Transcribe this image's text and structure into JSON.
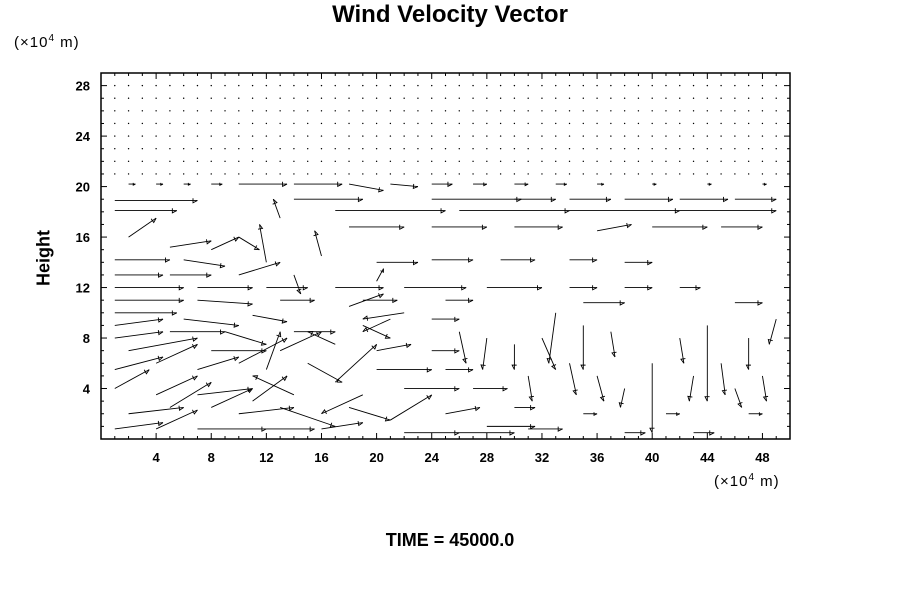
{
  "chart_data": {
    "type": "quiver",
    "title": "Wind Velocity Vector",
    "ylabel": "Height",
    "y_units": {
      "base": "(×10",
      "exp": "4",
      "tail": " m)"
    },
    "x_units": {
      "base": "(×10",
      "exp": "4",
      "tail": " m)"
    },
    "footer": "TIME = 45000.0",
    "xlim": [
      0,
      50
    ],
    "ylim": [
      0,
      29
    ],
    "x_ticks": [
      4,
      8,
      12,
      16,
      20,
      24,
      28,
      32,
      36,
      40,
      44,
      48
    ],
    "y_ticks": [
      4,
      8,
      12,
      16,
      20,
      24,
      28
    ],
    "grid": false,
    "vectors": [
      {
        "x": 2,
        "y": 20.2,
        "u": 0.5,
        "v": 0
      },
      {
        "x": 4,
        "y": 20.2,
        "u": 0.5,
        "v": 0
      },
      {
        "x": 6,
        "y": 20.2,
        "u": 0.5,
        "v": 0
      },
      {
        "x": 8,
        "y": 20.2,
        "u": 0.8,
        "v": 0
      },
      {
        "x": 10,
        "y": 20.2,
        "u": 3.5,
        "v": 0
      },
      {
        "x": 14,
        "y": 20.2,
        "u": 3.5,
        "v": 0
      },
      {
        "x": 18,
        "y": 20.2,
        "u": 2.5,
        "v": -0.5
      },
      {
        "x": 21,
        "y": 20.2,
        "u": 2.0,
        "v": -0.2
      },
      {
        "x": 24,
        "y": 20.2,
        "u": 1.5,
        "v": 0
      },
      {
        "x": 27,
        "y": 20.2,
        "u": 1.0,
        "v": 0
      },
      {
        "x": 30,
        "y": 20.2,
        "u": 1.0,
        "v": 0
      },
      {
        "x": 33,
        "y": 20.2,
        "u": 0.8,
        "v": 0
      },
      {
        "x": 36,
        "y": 20.2,
        "u": 0.5,
        "v": 0
      },
      {
        "x": 40,
        "y": 20.2,
        "u": 0.3,
        "v": 0
      },
      {
        "x": 44,
        "y": 20.2,
        "u": 0.3,
        "v": 0
      },
      {
        "x": 48,
        "y": 20.2,
        "u": 0.3,
        "v": 0
      },
      {
        "x": 1,
        "y": 18.9,
        "u": 6.0,
        "v": 0
      },
      {
        "x": 14,
        "y": 19.0,
        "u": 5.0,
        "v": 0
      },
      {
        "x": 24,
        "y": 19.0,
        "u": 6.5,
        "v": 0
      },
      {
        "x": 30,
        "y": 19.0,
        "u": 3.0,
        "v": 0
      },
      {
        "x": 34,
        "y": 19.0,
        "u": 3.0,
        "v": 0
      },
      {
        "x": 38,
        "y": 19.0,
        "u": 3.5,
        "v": 0
      },
      {
        "x": 42,
        "y": 19.0,
        "u": 3.5,
        "v": 0
      },
      {
        "x": 46,
        "y": 19.0,
        "u": 3.0,
        "v": 0
      },
      {
        "x": 1,
        "y": 18.1,
        "u": 4.5,
        "v": 0
      },
      {
        "x": 17,
        "y": 18.1,
        "u": 8.0,
        "v": 0
      },
      {
        "x": 26,
        "y": 18.1,
        "u": 8.0,
        "v": 0
      },
      {
        "x": 34,
        "y": 18.1,
        "u": 8.0,
        "v": 0
      },
      {
        "x": 42,
        "y": 18.1,
        "u": 7.0,
        "v": 0
      },
      {
        "x": 18,
        "y": 16.8,
        "u": 4.0,
        "v": 0
      },
      {
        "x": 24,
        "y": 16.8,
        "u": 4.0,
        "v": 0
      },
      {
        "x": 30,
        "y": 16.8,
        "u": 3.5,
        "v": 0
      },
      {
        "x": 36,
        "y": 16.5,
        "u": 2.5,
        "v": 0.5
      },
      {
        "x": 40,
        "y": 16.8,
        "u": 4.0,
        "v": 0
      },
      {
        "x": 45,
        "y": 16.8,
        "u": 3.0,
        "v": 0
      },
      {
        "x": 2,
        "y": 16.0,
        "u": 2.0,
        "v": 1.5
      },
      {
        "x": 5,
        "y": 15.2,
        "u": 3.0,
        "v": 0.5
      },
      {
        "x": 8,
        "y": 15.0,
        "u": 2.0,
        "v": 1.0
      },
      {
        "x": 10,
        "y": 16.0,
        "u": 1.5,
        "v": -1.0
      },
      {
        "x": 12,
        "y": 14.0,
        "u": -0.5,
        "v": 3.0
      },
      {
        "x": 13,
        "y": 17.5,
        "u": -0.5,
        "v": 1.5
      },
      {
        "x": 1,
        "y": 14.2,
        "u": 4.0,
        "v": 0
      },
      {
        "x": 6,
        "y": 14.2,
        "u": 3.0,
        "v": -0.5
      },
      {
        "x": 10,
        "y": 13.0,
        "u": 3.0,
        "v": 1.0
      },
      {
        "x": 16,
        "y": 14.5,
        "u": -0.5,
        "v": 2.0
      },
      {
        "x": 20,
        "y": 14.0,
        "u": 3.0,
        "v": 0
      },
      {
        "x": 24,
        "y": 14.2,
        "u": 3.0,
        "v": 0
      },
      {
        "x": 29,
        "y": 14.2,
        "u": 2.5,
        "v": 0
      },
      {
        "x": 34,
        "y": 14.2,
        "u": 2.0,
        "v": 0
      },
      {
        "x": 38,
        "y": 14.0,
        "u": 2.0,
        "v": 0
      },
      {
        "x": 1,
        "y": 13.0,
        "u": 3.5,
        "v": 0
      },
      {
        "x": 5,
        "y": 13.0,
        "u": 3.0,
        "v": 0
      },
      {
        "x": 1,
        "y": 12.0,
        "u": 5.0,
        "v": 0
      },
      {
        "x": 7,
        "y": 12.0,
        "u": 4.0,
        "v": 0
      },
      {
        "x": 12,
        "y": 12.0,
        "u": 3.0,
        "v": 0
      },
      {
        "x": 17,
        "y": 12.0,
        "u": 3.5,
        "v": 0
      },
      {
        "x": 22,
        "y": 12.0,
        "u": 4.5,
        "v": 0
      },
      {
        "x": 28,
        "y": 12.0,
        "u": 4.0,
        "v": 0
      },
      {
        "x": 34,
        "y": 12.0,
        "u": 2.0,
        "v": 0
      },
      {
        "x": 38,
        "y": 12.0,
        "u": 2.0,
        "v": 0
      },
      {
        "x": 42,
        "y": 12.0,
        "u": 1.5,
        "v": 0
      },
      {
        "x": 1,
        "y": 11.0,
        "u": 5.0,
        "v": 0
      },
      {
        "x": 7,
        "y": 11.0,
        "u": 4.0,
        "v": -0.3
      },
      {
        "x": 13,
        "y": 11.0,
        "u": 2.5,
        "v": 0
      },
      {
        "x": 19,
        "y": 11.0,
        "u": 2.5,
        "v": 0
      },
      {
        "x": 25,
        "y": 11.0,
        "u": 2.0,
        "v": 0
      },
      {
        "x": 35,
        "y": 10.8,
        "u": 3.0,
        "v": 0
      },
      {
        "x": 46,
        "y": 10.8,
        "u": 2.0,
        "v": 0
      },
      {
        "x": 1,
        "y": 10.0,
        "u": 4.5,
        "v": 0
      },
      {
        "x": 6,
        "y": 9.5,
        "u": 4.0,
        "v": -0.5
      },
      {
        "x": 11,
        "y": 9.8,
        "u": 2.5,
        "v": -0.5
      },
      {
        "x": 18,
        "y": 10.5,
        "u": 2.5,
        "v": 1.0
      },
      {
        "x": 22,
        "y": 10.0,
        "u": -3.0,
        "v": -0.5
      },
      {
        "x": 1,
        "y": 9.0,
        "u": 3.5,
        "v": 0.5
      },
      {
        "x": 5,
        "y": 8.5,
        "u": 4.0,
        "v": 0
      },
      {
        "x": 9,
        "y": 8.5,
        "u": 3.0,
        "v": -1.0
      },
      {
        "x": 14,
        "y": 8.5,
        "u": 3.0,
        "v": 0
      },
      {
        "x": 19,
        "y": 9.0,
        "u": 2.0,
        "v": -1.0
      },
      {
        "x": 21,
        "y": 9.5,
        "u": -2.0,
        "v": -1.0
      },
      {
        "x": 1,
        "y": 8.0,
        "u": 3.5,
        "v": 0.5
      },
      {
        "x": 2,
        "y": 7.0,
        "u": 5.0,
        "v": 1.0
      },
      {
        "x": 8,
        "y": 7.0,
        "u": 4.0,
        "v": 0
      },
      {
        "x": 12,
        "y": 5.5,
        "u": 1.0,
        "v": 3.0
      },
      {
        "x": 13,
        "y": 7.0,
        "u": 3.0,
        "v": 1.5
      },
      {
        "x": 17,
        "y": 7.5,
        "u": -2.0,
        "v": 1.0
      },
      {
        "x": 20,
        "y": 7.0,
        "u": 2.5,
        "v": 0.5
      },
      {
        "x": 24,
        "y": 7.0,
        "u": 2.0,
        "v": 0
      },
      {
        "x": 1,
        "y": 5.5,
        "u": 3.5,
        "v": 1.0
      },
      {
        "x": 4,
        "y": 6.0,
        "u": 3.0,
        "v": 1.5
      },
      {
        "x": 7,
        "y": 5.5,
        "u": 3.0,
        "v": 1.0
      },
      {
        "x": 10,
        "y": 6.0,
        "u": 3.5,
        "v": 2.0
      },
      {
        "x": 15,
        "y": 6.0,
        "u": 2.5,
        "v": -1.5
      },
      {
        "x": 17,
        "y": 4.5,
        "u": 3.0,
        "v": 3.0
      },
      {
        "x": 20,
        "y": 5.5,
        "u": 4.0,
        "v": 0
      },
      {
        "x": 25,
        "y": 5.5,
        "u": 2.0,
        "v": 0
      },
      {
        "x": 1,
        "y": 4.0,
        "u": 2.5,
        "v": 1.5
      },
      {
        "x": 4,
        "y": 3.5,
        "u": 3.0,
        "v": 1.5
      },
      {
        "x": 7,
        "y": 3.5,
        "u": 4.0,
        "v": 0.5
      },
      {
        "x": 11,
        "y": 3.0,
        "u": 2.5,
        "v": 2.0
      },
      {
        "x": 14,
        "y": 3.5,
        "u": -3.0,
        "v": 1.5
      },
      {
        "x": 19,
        "y": 3.5,
        "u": -3.0,
        "v": -1.5
      },
      {
        "x": 22,
        "y": 4.0,
        "u": 4.0,
        "v": 0
      },
      {
        "x": 27,
        "y": 4.0,
        "u": 2.5,
        "v": 0
      },
      {
        "x": 2,
        "y": 2.0,
        "u": 4.0,
        "v": 0.5
      },
      {
        "x": 5,
        "y": 2.5,
        "u": 3.0,
        "v": 2.0
      },
      {
        "x": 8,
        "y": 2.5,
        "u": 3.0,
        "v": 1.5
      },
      {
        "x": 10,
        "y": 2.0,
        "u": 4.0,
        "v": 0.5
      },
      {
        "x": 13,
        "y": 2.5,
        "u": 4.0,
        "v": -1.5
      },
      {
        "x": 18,
        "y": 2.5,
        "u": 3.0,
        "v": -1.0
      },
      {
        "x": 21,
        "y": 1.5,
        "u": 3.0,
        "v": 2.0
      },
      {
        "x": 25,
        "y": 2.0,
        "u": 2.5,
        "v": 0.5
      },
      {
        "x": 28,
        "y": 1.0,
        "u": 3.5,
        "v": 0
      },
      {
        "x": 1,
        "y": 0.8,
        "u": 3.5,
        "v": 0.5
      },
      {
        "x": 4,
        "y": 0.8,
        "u": 3.0,
        "v": 1.5
      },
      {
        "x": 7,
        "y": 0.8,
        "u": 5.0,
        "v": 0
      },
      {
        "x": 12,
        "y": 0.8,
        "u": 3.5,
        "v": 0
      },
      {
        "x": 16,
        "y": 0.8,
        "u": 3.0,
        "v": 0.5
      },
      {
        "x": 22,
        "y": 0.5,
        "u": 4.0,
        "v": 0
      },
      {
        "x": 26,
        "y": 0.5,
        "u": 4.0,
        "v": 0
      },
      {
        "x": 31,
        "y": 0.8,
        "u": 2.5,
        "v": 0
      },
      {
        "x": 24,
        "y": 9.5,
        "u": 2.0,
        "v": 0
      },
      {
        "x": 26,
        "y": 8.5,
        "u": 0.5,
        "v": -2.5
      },
      {
        "x": 28,
        "y": 8.0,
        "u": -0.3,
        "v": -2.5
      },
      {
        "x": 30,
        "y": 7.5,
        "u": 0,
        "v": -2.0
      },
      {
        "x": 31,
        "y": 5.0,
        "u": 0.3,
        "v": -2.0
      },
      {
        "x": 32,
        "y": 8.0,
        "u": 1.0,
        "v": -2.5
      },
      {
        "x": 33,
        "y": 10.0,
        "u": -0.5,
        "v": -4.0
      },
      {
        "x": 34,
        "y": 6.0,
        "u": 0.5,
        "v": -2.5
      },
      {
        "x": 35,
        "y": 9.0,
        "u": 0,
        "v": -3.5
      },
      {
        "x": 36,
        "y": 5.0,
        "u": 0.5,
        "v": -2.0
      },
      {
        "x": 37,
        "y": 8.5,
        "u": 0.3,
        "v": -2.0
      },
      {
        "x": 38,
        "y": 4.0,
        "u": -0.3,
        "v": -1.5
      },
      {
        "x": 40,
        "y": 6.0,
        "u": 0,
        "v": -5.5
      },
      {
        "x": 42,
        "y": 8.0,
        "u": 0.3,
        "v": -2.0
      },
      {
        "x": 43,
        "y": 5.0,
        "u": -0.3,
        "v": -2.0
      },
      {
        "x": 44,
        "y": 9.0,
        "u": 0,
        "v": -6.0
      },
      {
        "x": 45,
        "y": 6.0,
        "u": 0.3,
        "v": -2.5
      },
      {
        "x": 46,
        "y": 4.0,
        "u": 0.5,
        "v": -1.5
      },
      {
        "x": 47,
        "y": 8.0,
        "u": 0,
        "v": -2.5
      },
      {
        "x": 48,
        "y": 5.0,
        "u": 0.3,
        "v": -2.0
      },
      {
        "x": 49,
        "y": 9.5,
        "u": -0.5,
        "v": -2.0
      },
      {
        "x": 30,
        "y": 2.5,
        "u": 1.5,
        "v": 0
      },
      {
        "x": 35,
        "y": 2.0,
        "u": 1.0,
        "v": 0
      },
      {
        "x": 41,
        "y": 2.0,
        "u": 1.0,
        "v": 0
      },
      {
        "x": 47,
        "y": 2.0,
        "u": 1.0,
        "v": 0
      },
      {
        "x": 38,
        "y": 0.5,
        "u": 1.5,
        "v": 0
      },
      {
        "x": 43,
        "y": 0.5,
        "u": 1.5,
        "v": 0
      },
      {
        "x": 20,
        "y": 12.5,
        "u": 0.5,
        "v": 1.0
      },
      {
        "x": 14,
        "y": 13.0,
        "u": 0.5,
        "v": -1.5
      }
    ]
  }
}
